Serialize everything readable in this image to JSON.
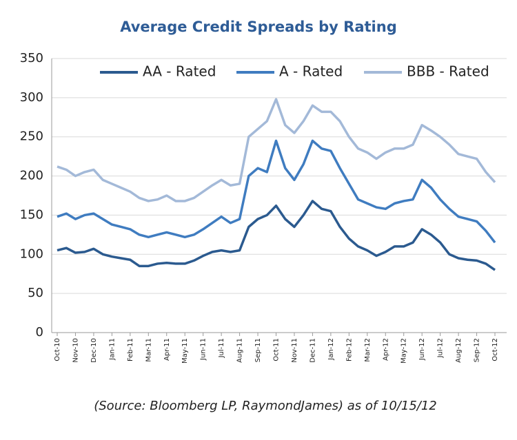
{
  "chart_data": {
    "type": "line",
    "title": "Average Credit Spreads by Rating",
    "note": "(Source: Bloomberg LP, RaymondJames) as of 10/15/12",
    "categories": [
      "Oct-10",
      null,
      "Nov-10",
      null,
      "Dec-10",
      null,
      "Jan-11",
      null,
      "Feb-11",
      null,
      "Mar-11",
      null,
      "Apr-11",
      null,
      "May-11",
      null,
      "Jun-11",
      null,
      "Jul-11",
      null,
      "Aug-11",
      null,
      "Sep-11",
      null,
      "Oct-11",
      null,
      "Nov-11",
      null,
      "Dec-11",
      null,
      "Jan-12",
      null,
      "Feb-12",
      null,
      "Mar-12",
      null,
      "Apr-12",
      null,
      "May-12",
      null,
      "Jun-12",
      null,
      "Jul-12",
      null,
      "Aug-12",
      null,
      "Sep-12",
      null,
      "Oct-12"
    ],
    "series": [
      {
        "name": "AA - Rated",
        "color": "#2b5a8f",
        "values": [
          105,
          108,
          102,
          103,
          107,
          100,
          97,
          95,
          93,
          85,
          85,
          88,
          89,
          88,
          88,
          92,
          98,
          103,
          105,
          103,
          105,
          135,
          145,
          150,
          162,
          145,
          135,
          150,
          168,
          158,
          155,
          135,
          120,
          110,
          105,
          98,
          103,
          110,
          110,
          115,
          132,
          125,
          115,
          100,
          95,
          93,
          92,
          88,
          80
        ]
      },
      {
        "name": "A - Rated",
        "color": "#3f7cc0",
        "values": [
          148,
          152,
          145,
          150,
          152,
          145,
          138,
          135,
          132,
          125,
          122,
          125,
          128,
          125,
          122,
          125,
          132,
          140,
          148,
          140,
          145,
          200,
          210,
          205,
          245,
          210,
          195,
          215,
          245,
          235,
          232,
          210,
          190,
          170,
          165,
          160,
          158,
          165,
          168,
          170,
          195,
          185,
          170,
          158,
          148,
          145,
          142,
          130,
          115
        ]
      },
      {
        "name": "BBB - Rated",
        "color": "#a3b9d8",
        "values": [
          212,
          208,
          200,
          205,
          208,
          195,
          190,
          185,
          180,
          172,
          168,
          170,
          175,
          168,
          168,
          172,
          180,
          188,
          195,
          188,
          190,
          250,
          260,
          270,
          298,
          265,
          255,
          270,
          290,
          282,
          282,
          270,
          250,
          235,
          230,
          222,
          230,
          235,
          235,
          240,
          265,
          258,
          250,
          240,
          228,
          225,
          222,
          205,
          192
        ]
      }
    ],
    "ylim": [
      0,
      350
    ],
    "yticks": [
      0,
      50,
      100,
      150,
      200,
      250,
      300,
      350
    ],
    "grid": true,
    "legend": "top"
  }
}
